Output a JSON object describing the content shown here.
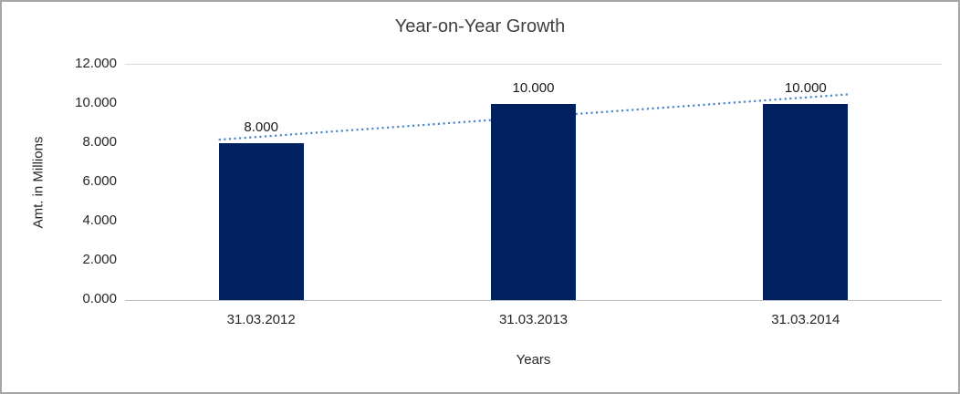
{
  "chart_data": {
    "type": "bar",
    "title": "Year-on-Year Growth",
    "xlabel": "Years",
    "ylabel": "Amt. in Millions",
    "categories": [
      "31.03.2012",
      "31.03.2013",
      "31.03.2014"
    ],
    "values": [
      8.0,
      10.0,
      10.0
    ],
    "data_labels": [
      "8.000",
      "10.000",
      "10.000"
    ],
    "yticks": [
      "0.000",
      "2.000",
      "4.000",
      "6.000",
      "8.000",
      "10.000",
      "12.000"
    ],
    "ylim": [
      0,
      12
    ],
    "bar_color": "#002060",
    "trendline_color": "#4a86c8",
    "trendline_style": "dotted",
    "legend_position": "none",
    "grid": "top-line-only",
    "background_color": "#ffffff",
    "border_color": "#a6a6a6"
  }
}
